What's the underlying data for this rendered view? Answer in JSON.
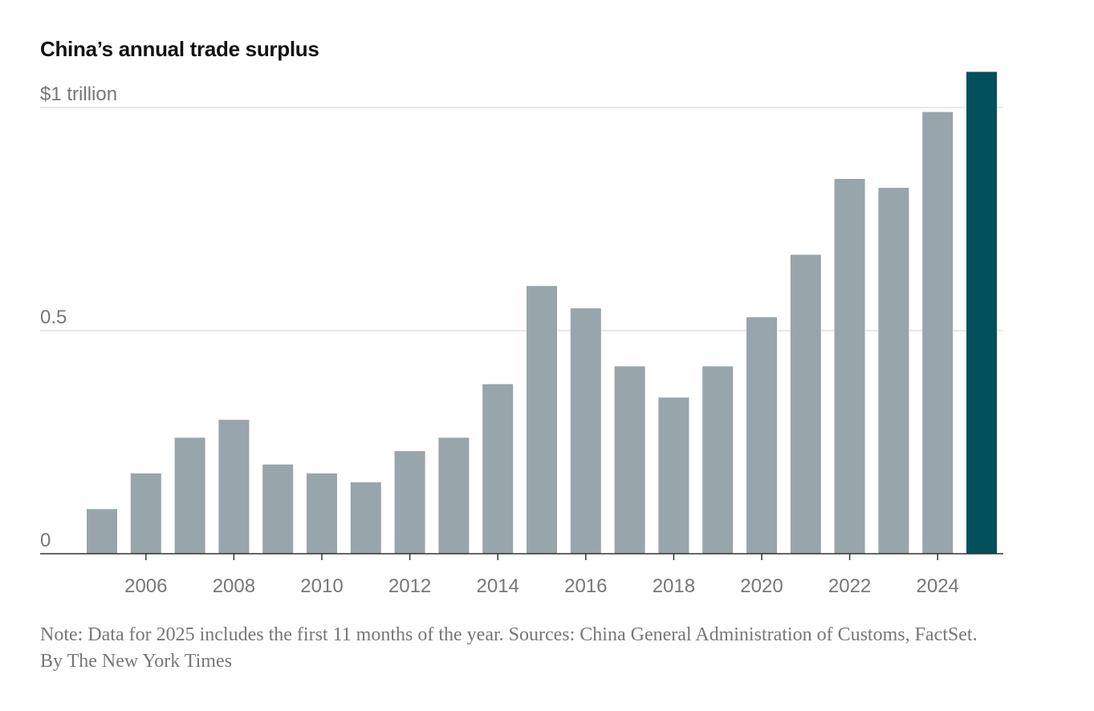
{
  "chart_data": {
    "type": "bar",
    "title": "China’s annual trade surplus",
    "categories": [
      "2005",
      "2006",
      "2007",
      "2008",
      "2009",
      "2010",
      "2011",
      "2012",
      "2013",
      "2014",
      "2015",
      "2016",
      "2017",
      "2018",
      "2019",
      "2020",
      "2021",
      "2022",
      "2023",
      "2024",
      "2025"
    ],
    "values": [
      0.1,
      0.18,
      0.26,
      0.3,
      0.2,
      0.18,
      0.16,
      0.23,
      0.26,
      0.38,
      0.6,
      0.55,
      0.42,
      0.35,
      0.42,
      0.53,
      0.67,
      0.84,
      0.82,
      0.99,
      1.08
    ],
    "unit": "trillion USD",
    "ylim": [
      0,
      1.0
    ],
    "y_ticks": [
      {
        "value": 0,
        "label": "0"
      },
      {
        "value": 0.5,
        "label": "0.5"
      },
      {
        "value": 1,
        "label": "$1 trillion"
      }
    ],
    "x_tick_labels": [
      "2006",
      "2008",
      "2010",
      "2012",
      "2014",
      "2016",
      "2018",
      "2020",
      "2022",
      "2024"
    ],
    "grid": true,
    "colors": {
      "bar": "#98a5aa",
      "highlight": "#02505c",
      "highlight_category": "2025"
    }
  },
  "note": "Note: Data for 2025 includes the first 11 months of the year.  Sources: China General Administration of Customs, FactSet.  By The New York Times"
}
